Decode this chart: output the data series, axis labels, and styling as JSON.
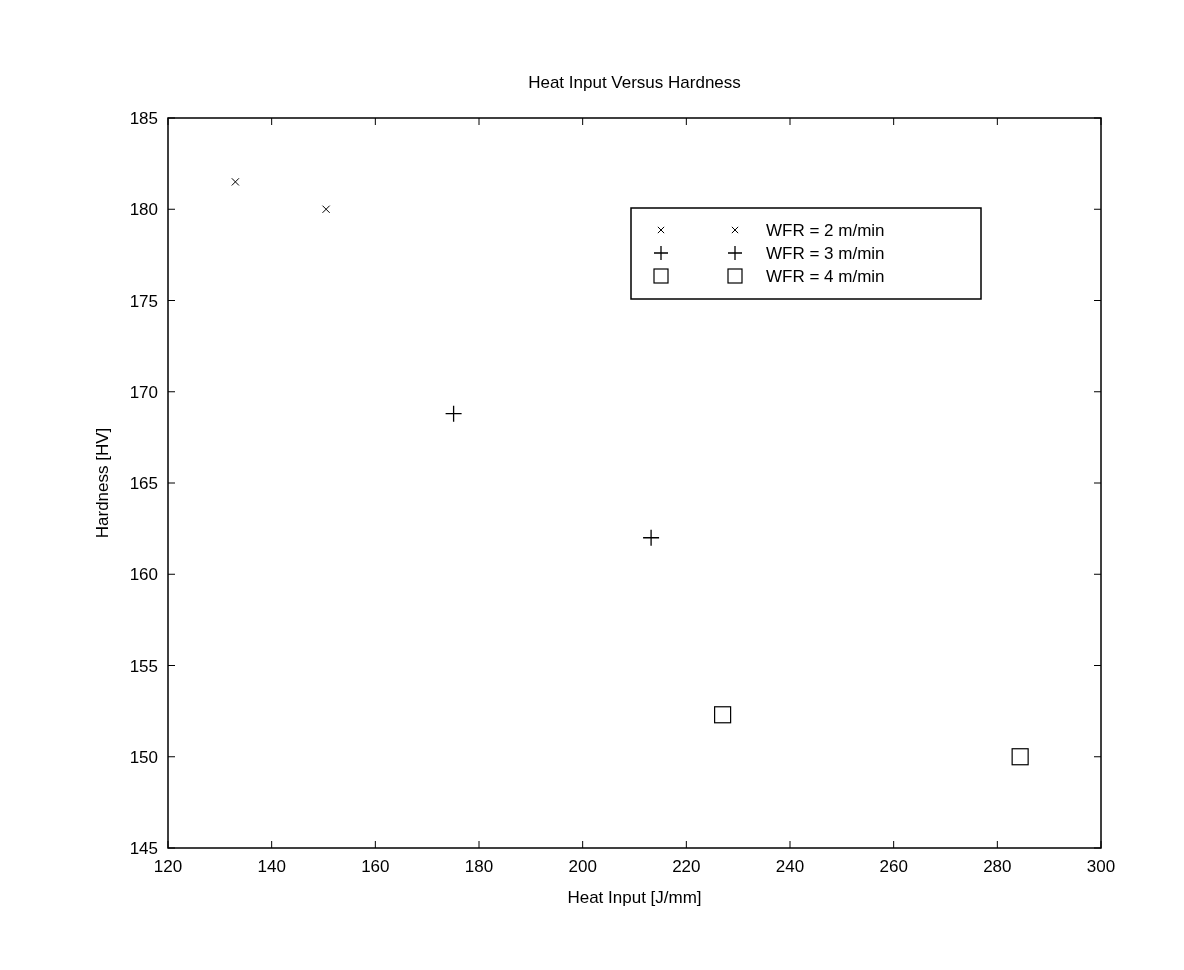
{
  "chart_data": {
    "type": "scatter",
    "title": "Heat Input Versus Hardness",
    "xlabel": "Heat Input [J/mm]",
    "ylabel": "Hardness [HV]",
    "xlim": [
      120,
      300
    ],
    "xticks": [
      120,
      140,
      160,
      180,
      200,
      220,
      240,
      260,
      280,
      300
    ],
    "ylim": [
      145,
      185
    ],
    "yticks": [
      145,
      150,
      155,
      160,
      165,
      170,
      175,
      180,
      185
    ],
    "grid": false,
    "legend": "top right",
    "series": [
      {
        "name": "WFR = 2 m/min",
        "color": "#000000",
        "marker": "cross",
        "x": [
          133.0,
          150.5
        ],
        "values": [
          181.5,
          180.0
        ]
      },
      {
        "name": "WFR = 3 m/min",
        "color": "#000000",
        "marker": "plus",
        "x": [
          175.1,
          213.2
        ],
        "values": [
          168.8,
          162.0
        ]
      },
      {
        "name": "WFR = 4 m/min",
        "color": "#000000",
        "marker": "square",
        "x": [
          227.0,
          284.4
        ],
        "values": [
          152.3,
          150.0
        ]
      }
    ]
  }
}
